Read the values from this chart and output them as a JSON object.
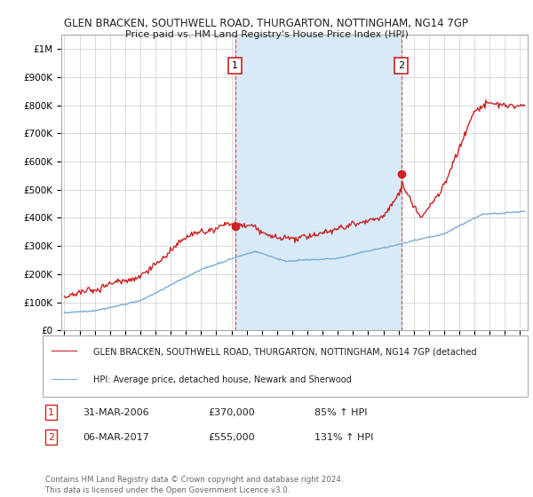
{
  "title1": "GLEN BRACKEN, SOUTHWELL ROAD, THURGARTON, NOTTINGHAM, NG14 7GP",
  "title2": "Price paid vs. HM Land Registry's House Price Index (HPI)",
  "ylabel_ticks": [
    "£0",
    "£100K",
    "£200K",
    "£300K",
    "£400K",
    "£500K",
    "£600K",
    "£700K",
    "£800K",
    "£900K",
    "£1M"
  ],
  "ytick_values": [
    0,
    100000,
    200000,
    300000,
    400000,
    500000,
    600000,
    700000,
    800000,
    900000,
    1000000
  ],
  "ylim": [
    0,
    1050000
  ],
  "xlim_start": 1994.8,
  "xlim_end": 2025.5,
  "xtick_years": [
    1995,
    1996,
    1997,
    1998,
    1999,
    2000,
    2001,
    2002,
    2003,
    2004,
    2005,
    2006,
    2007,
    2008,
    2009,
    2010,
    2011,
    2012,
    2013,
    2014,
    2015,
    2016,
    2017,
    2018,
    2019,
    2020,
    2021,
    2022,
    2023,
    2024,
    2025
  ],
  "hpi_color": "#7aadd4",
  "price_color": "#cc2222",
  "shade_color": "#d8eaf7",
  "marker1_x": 2006.25,
  "marker1_y": 370000,
  "marker2_x": 2017.17,
  "marker2_y": 555000,
  "legend_line1": "GLEN BRACKEN, SOUTHWELL ROAD, THURGARTON, NOTTINGHAM, NG14 7GP (detached",
  "legend_line2": "HPI: Average price, detached house, Newark and Sherwood",
  "footnote": "Contains HM Land Registry data © Crown copyright and database right 2024.\nThis data is licensed under the Open Government Licence v3.0.",
  "background_color": "#ffffff",
  "plot_bg_color": "#ffffff",
  "grid_color": "#cccccc"
}
